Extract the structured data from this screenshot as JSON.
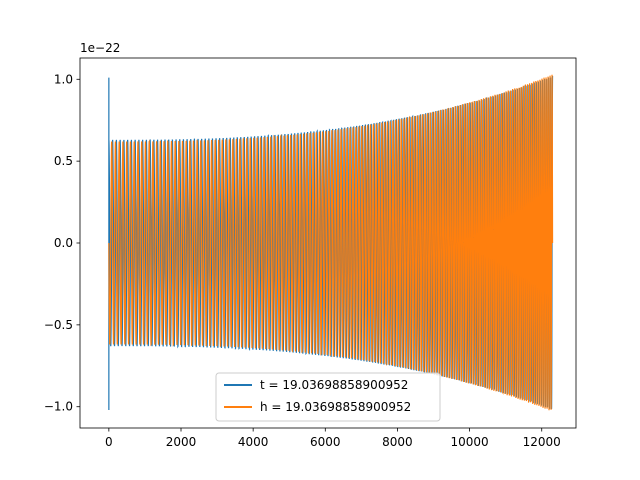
{
  "chart_data": {
    "type": "line",
    "offset_text": "1e−22",
    "x_ticks": [
      0,
      2000,
      4000,
      6000,
      8000,
      10000,
      12000
    ],
    "x_tick_labels": [
      "0",
      "2000",
      "4000",
      "6000",
      "8000",
      "10000",
      "12000"
    ],
    "y_ticks": [
      -1.0,
      -0.5,
      0.0,
      0.5,
      1.0
    ],
    "y_tick_labels": [
      "−1.0",
      "−0.5",
      "0.0",
      "0.5",
      "1.0"
    ],
    "xlim": [
      -800,
      12950
    ],
    "ylim": [
      -1.13,
      1.13
    ],
    "grid": false,
    "legend_position": "lower center",
    "series": [
      {
        "name": "t = 19.03698858900952",
        "color": "#1f77b4",
        "x_start": 0,
        "x_end": 12300,
        "initial_spike": [
          1.01,
          -1.02
        ],
        "envelope_start": 0.63,
        "envelope_end": 1.02
      },
      {
        "name": "h = 19.03698858900952",
        "color": "#ff7f0e",
        "x_start": 0,
        "x_end": 12300,
        "envelope_start": 0.62,
        "envelope_end": 1.03
      }
    ]
  }
}
